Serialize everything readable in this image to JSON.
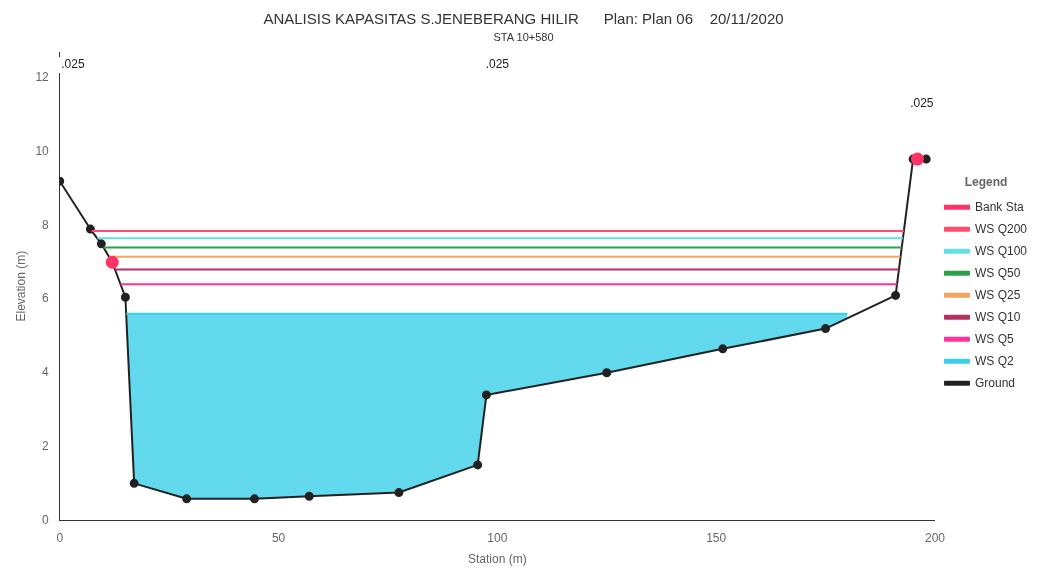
{
  "chart_data": {
    "type": "line",
    "title": "ANALISIS KAPASITAS S.JENEBERANG HILIR      Plan: Plan 06    20/11/2020",
    "subtitle": "STA 10+580",
    "xlabel": "Station (m)",
    "ylabel": "Elevation (m)",
    "legend_title": "Legend",
    "legend": "right",
    "grid": false,
    "xlim": [
      0,
      200
    ],
    "xticks": [
      0,
      50,
      100,
      150,
      200
    ],
    "ylim": [
      0,
      12.7
    ],
    "yticks": [
      0,
      2,
      4,
      6,
      8,
      10,
      12
    ],
    "series": [
      {
        "name": "WS Q200",
        "color": "#ff4d6d",
        "marker": "none",
        "x": [
          7.3,
          192.9
        ],
        "values": [
          7.85,
          7.85
        ]
      },
      {
        "name": "WS Q100",
        "color": "#66e0e0",
        "marker": "none",
        "x": [
          8.6,
          192.7
        ],
        "values": [
          7.65,
          7.65
        ]
      },
      {
        "name": "WS Q50",
        "color": "#2e9e48",
        "marker": "none",
        "x": [
          10,
          192.4
        ],
        "values": [
          7.4,
          7.4
        ]
      },
      {
        "name": "WS Q25",
        "color": "#f4a460",
        "marker": "none",
        "x": [
          11.25,
          192.1
        ],
        "values": [
          7.15,
          7.15
        ]
      },
      {
        "name": "WS Q10",
        "color": "#b03060",
        "marker": "none",
        "x": [
          12.6,
          191.8
        ],
        "values": [
          6.8,
          6.8
        ]
      },
      {
        "name": "WS Q5",
        "color": "#ff3399",
        "marker": "none",
        "x": [
          13.9,
          191.3
        ],
        "values": [
          6.4,
          6.4
        ]
      },
      {
        "name": "WS Q2",
        "color": "#3ccfea",
        "marker": "none",
        "x": [
          15.2,
          17,
          29,
          44.5,
          57,
          77.5,
          95.5,
          97.5,
          125,
          151.5,
          175,
          180
        ],
        "values": [
          5.6,
          5.6,
          5.6,
          5.6,
          5.6,
          5.6,
          5.6,
          5.6,
          5.6,
          5.6,
          5.6,
          5.6
        ],
        "lower": [
          5.6,
          1.0,
          0.58,
          0.58,
          0.65,
          0.75,
          1.5,
          3.4,
          4.0,
          4.65,
          5.2,
          5.5
        ],
        "upper": [
          5.6,
          5.6,
          5.6,
          5.6,
          5.6,
          5.6,
          5.6,
          5.6,
          5.6,
          5.6,
          5.6,
          5.6
        ]
      },
      {
        "name": "Ground",
        "color": "#222222",
        "marker": "circle",
        "x": [
          0,
          7,
          9.5,
          12,
          15,
          17,
          29,
          44.5,
          57,
          77.5,
          95.5,
          97.5,
          125,
          151.5,
          175,
          191,
          195,
          198
        ],
        "values": [
          9.2,
          7.9,
          7.5,
          7.0,
          6.05,
          1.0,
          0.58,
          0.58,
          0.65,
          0.75,
          1.5,
          3.4,
          4.0,
          4.65,
          5.2,
          6.1,
          9.8,
          9.8
        ]
      },
      {
        "name": "Bank Sta",
        "type": "scatter",
        "color": "#ff3366",
        "marker": "circle",
        "x": [
          12,
          196
        ],
        "values": [
          7.0,
          9.8
        ]
      }
    ],
    "annotations": [
      {
        "text": ".025",
        "x": 3,
        "y": 12.35
      },
      {
        "text": ".025",
        "x": 100,
        "y": 12.35
      },
      {
        "text": ".025",
        "x": 197,
        "y": 11.3
      }
    ]
  }
}
